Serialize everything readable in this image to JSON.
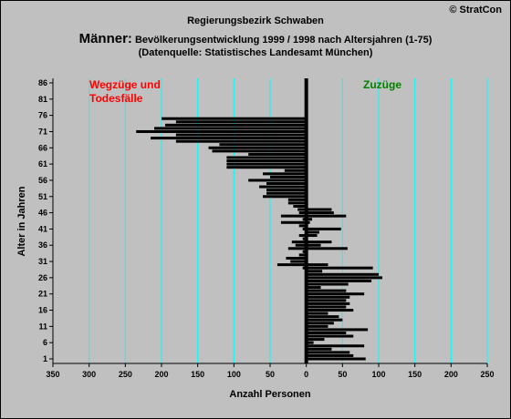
{
  "header": {
    "copyright": "© StratCon",
    "title_line1": "Regierungsbezirk Schwaben",
    "title_main_big": "Männer:",
    "title_main_small": " Bevölkerungsentwicklung 1999 / 1998  nach Altersjahren (1-75)",
    "title_line3": "(Datenquelle: Statistisches Landesamt München)"
  },
  "colors": {
    "background": "#c0c0c0",
    "grid": "#00ffff",
    "bars": "#000000",
    "left_label": "#ff0000",
    "right_label": "#008000"
  },
  "chart_data": {
    "type": "bar",
    "orientation": "horizontal-butterfly",
    "xlabel": "Anzahl Personen",
    "ylabel": "Alter in Jahren",
    "left_label_lines": [
      "Wegzüge und",
      "Todesfälle"
    ],
    "right_label": "Zuzüge",
    "xlim": [
      -350,
      250
    ],
    "x_ticks": [
      -350,
      -300,
      -250,
      -200,
      -150,
      -100,
      -50,
      0,
      50,
      100,
      150,
      200,
      250
    ],
    "x_tick_labels": [
      "350",
      "300",
      "250",
      "200",
      "150",
      "100",
      "50",
      "0",
      "50",
      "100",
      "150",
      "200",
      "250"
    ],
    "ylim": [
      1,
      86
    ],
    "y_ticks": [
      1,
      6,
      11,
      16,
      21,
      26,
      31,
      36,
      41,
      46,
      51,
      56,
      61,
      66,
      71,
      76,
      81,
      86
    ],
    "grid": "vertical",
    "ages": [
      1,
      2,
      3,
      4,
      5,
      6,
      7,
      8,
      9,
      10,
      11,
      12,
      13,
      14,
      15,
      16,
      17,
      18,
      19,
      20,
      21,
      22,
      23,
      24,
      25,
      26,
      27,
      28,
      29,
      30,
      31,
      32,
      33,
      34,
      35,
      36,
      37,
      38,
      39,
      40,
      41,
      42,
      43,
      44,
      45,
      46,
      47,
      48,
      49,
      50,
      51,
      52,
      53,
      54,
      55,
      56,
      57,
      58,
      59,
      60,
      61,
      62,
      63,
      64,
      65,
      66,
      67,
      68,
      69,
      70,
      71,
      72,
      73,
      74,
      75
    ],
    "series": [
      {
        "name": "Zuzüge",
        "values": [
          82,
          65,
          60,
          35,
          80,
          10,
          25,
          65,
          55,
          85,
          30,
          38,
          50,
          45,
          30,
          65,
          55,
          60,
          55,
          60,
          80,
          55,
          20,
          58,
          90,
          105,
          100,
          22,
          92,
          30,
          0,
          0,
          0,
          0,
          57,
          20,
          35,
          0,
          15,
          18,
          48,
          2,
          5,
          8,
          55,
          38,
          35,
          0,
          0,
          0,
          0,
          0,
          0,
          0,
          0,
          0,
          0,
          0,
          0,
          0,
          0,
          0,
          0,
          0,
          0,
          0,
          0,
          0,
          0,
          0,
          0,
          0,
          0,
          0,
          0
        ]
      },
      {
        "name": "Wegzüge und Todesfälle",
        "values": [
          0,
          0,
          0,
          0,
          0,
          0,
          0,
          0,
          0,
          0,
          0,
          0,
          0,
          0,
          0,
          0,
          0,
          0,
          0,
          0,
          0,
          0,
          0,
          0,
          0,
          0,
          0,
          0,
          -5,
          -40,
          -22,
          -28,
          -10,
          -5,
          -25,
          -15,
          -20,
          -5,
          -10,
          -2,
          -5,
          -10,
          -35,
          -5,
          -35,
          -10,
          -12,
          -18,
          -25,
          -25,
          -60,
          -55,
          -55,
          -65,
          -55,
          -80,
          -50,
          -60,
          -30,
          -110,
          -110,
          -110,
          -110,
          -80,
          -130,
          -135,
          -120,
          -180,
          -215,
          -180,
          -235,
          -210,
          -195,
          -180,
          -200
        ]
      }
    ]
  }
}
